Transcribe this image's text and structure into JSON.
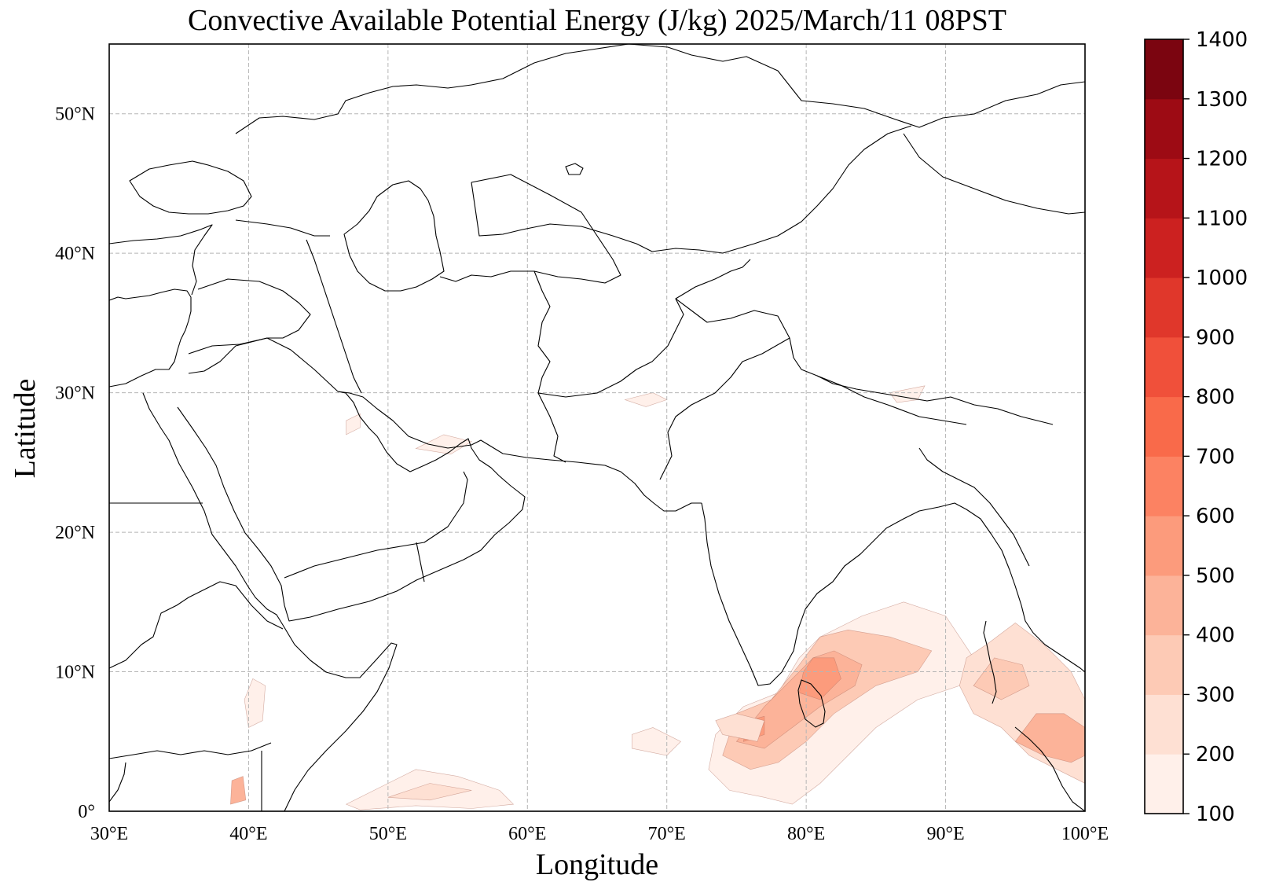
{
  "title": "Convective Available Potential Energy (J/kg)  2025/March/11 08PST",
  "xlabel": "Longitude",
  "ylabel": "Latitude",
  "x_ticks": [
    {
      "value": 30,
      "label": "30°E"
    },
    {
      "value": 40,
      "label": "40°E"
    },
    {
      "value": 50,
      "label": "50°E"
    },
    {
      "value": 60,
      "label": "60°E"
    },
    {
      "value": 70,
      "label": "70°E"
    },
    {
      "value": 80,
      "label": "80°E"
    },
    {
      "value": 90,
      "label": "90°E"
    },
    {
      "value": 100,
      "label": "100°E"
    }
  ],
  "y_ticks": [
    {
      "value": 0,
      "label": "0°"
    },
    {
      "value": 10,
      "label": "10°N"
    },
    {
      "value": 20,
      "label": "20°N"
    },
    {
      "value": 30,
      "label": "30°N"
    },
    {
      "value": 40,
      "label": "40°N"
    },
    {
      "value": 50,
      "label": "50°N"
    }
  ],
  "extent": {
    "lon": [
      30,
      100
    ],
    "lat": [
      0,
      55
    ]
  },
  "colorbar": {
    "levels": [
      100,
      200,
      300,
      400,
      500,
      600,
      700,
      800,
      900,
      1000,
      1100,
      1200,
      1300,
      1400
    ],
    "colors": [
      "#fff0ea",
      "#fee0d3",
      "#fdcab5",
      "#fcb399",
      "#fc9b7c",
      "#fc8262",
      "#f96a4a",
      "#f0503a",
      "#e0372b",
      "#cc2120",
      "#b61419",
      "#9d0b14",
      "#7b0510"
    ]
  },
  "chart_data": {
    "type": "filled-contour-map",
    "variable": "Convective Available Potential Energy",
    "units": "J/kg",
    "valid_time": "2025/March/11 08PST",
    "lon_range": [
      30,
      100
    ],
    "lat_range": [
      0,
      55
    ],
    "gridlines": true,
    "colorbar_range": [
      100,
      1400
    ],
    "colorbar_step": 100,
    "regions": [
      {
        "lat": 8,
        "lon": 82,
        "value": 500
      },
      {
        "lat": 6,
        "lon": 76,
        "value": 450
      },
      {
        "lat": 3,
        "lon": 79,
        "value": 200
      },
      {
        "lat": 10,
        "lon": 87,
        "value": 200
      },
      {
        "lat": 9,
        "lon": 94,
        "value": 350
      },
      {
        "lat": 5,
        "lon": 98,
        "value": 500
      },
      {
        "lat": 2,
        "lon": 54,
        "value": 150
      },
      {
        "lat": 1,
        "lon": 39,
        "value": 400
      }
    ]
  }
}
